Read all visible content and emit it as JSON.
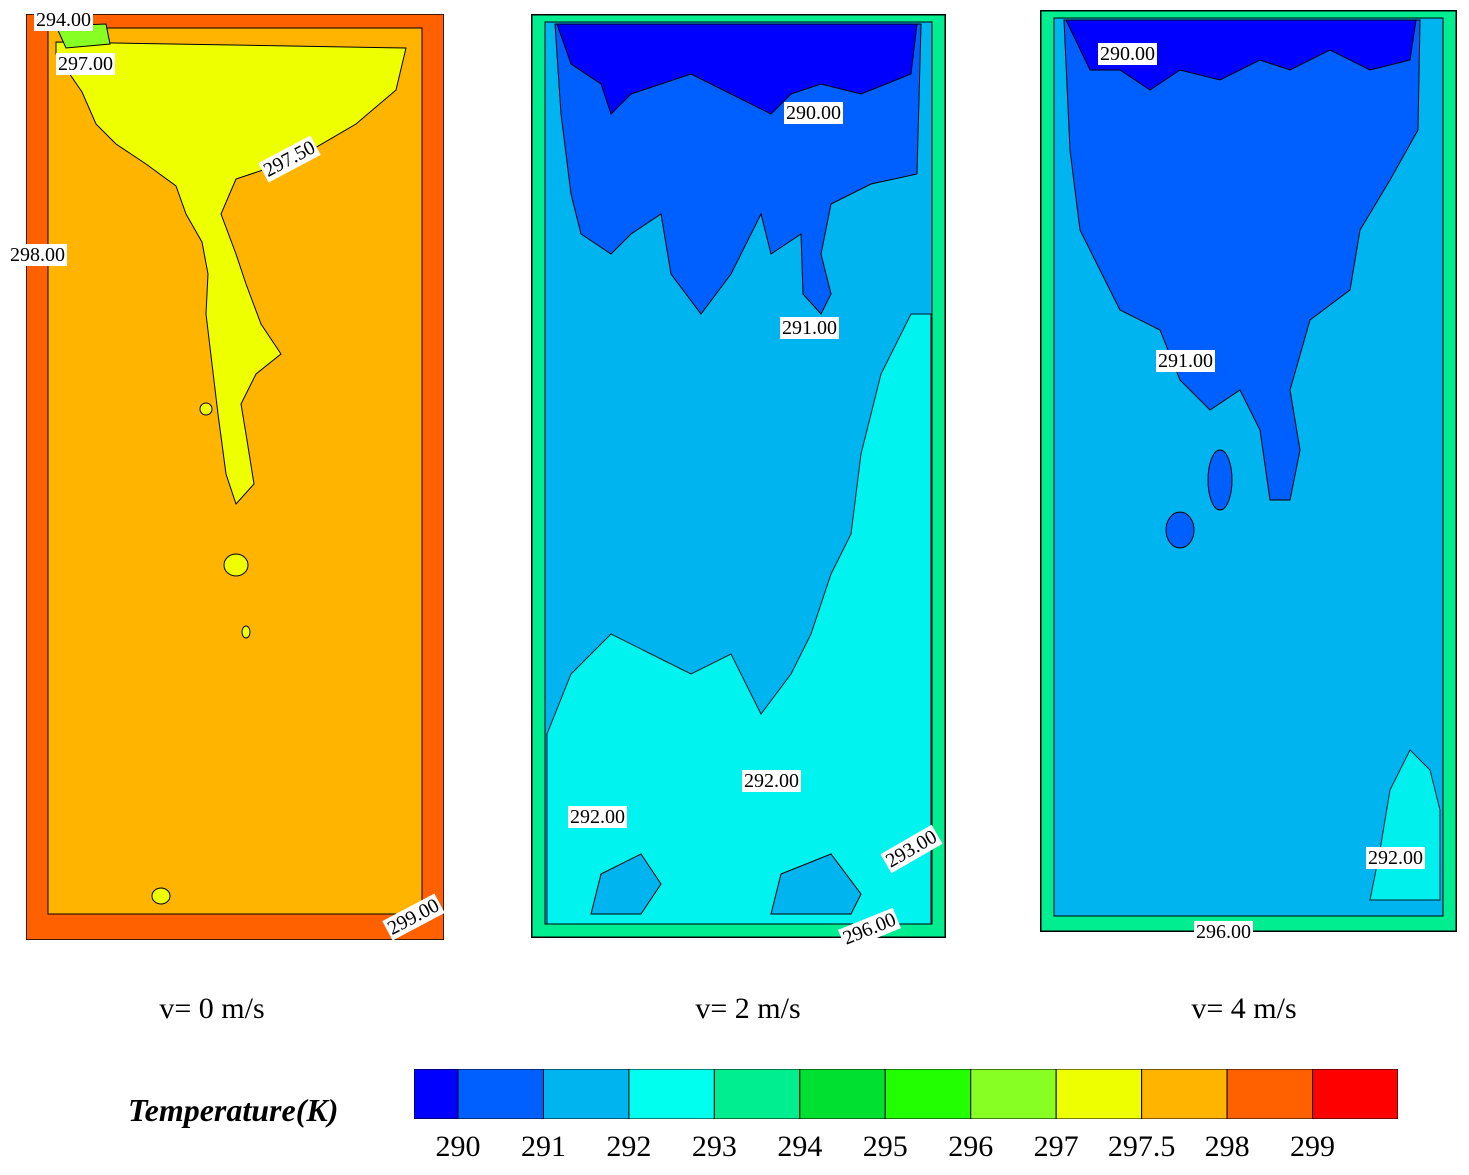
{
  "chart_data": {
    "type": "heatmap",
    "panels": [
      {
        "caption": "v= 0 m/s",
        "base_level": "297.5",
        "labels": [
          "294.00",
          "297.00",
          "297.50",
          "298.00",
          "299.00"
        ]
      },
      {
        "caption": "v= 2 m/s",
        "base_level": "292",
        "labels": [
          "290.00",
          "291.00",
          "292.00",
          "292.00",
          "293.00",
          "296.00"
        ]
      },
      {
        "caption": "v= 4 m/s",
        "base_level": "292",
        "labels": [
          "290.00",
          "291.00",
          "292.00",
          "296.00"
        ]
      }
    ],
    "colorbar": {
      "title": "Temperature(K)",
      "ticks": [
        "290",
        "291",
        "292",
        "293",
        "294",
        "295",
        "296",
        "297",
        "297.5",
        "298",
        "299"
      ],
      "colors": [
        "#0000ff",
        "#0060ff",
        "#00b4f0",
        "#00ffee",
        "#00ee90",
        "#00e030",
        "#22ff00",
        "#88ff22",
        "#eeff00",
        "#ffb400",
        "#ff6000",
        "#ff0000"
      ]
    }
  }
}
